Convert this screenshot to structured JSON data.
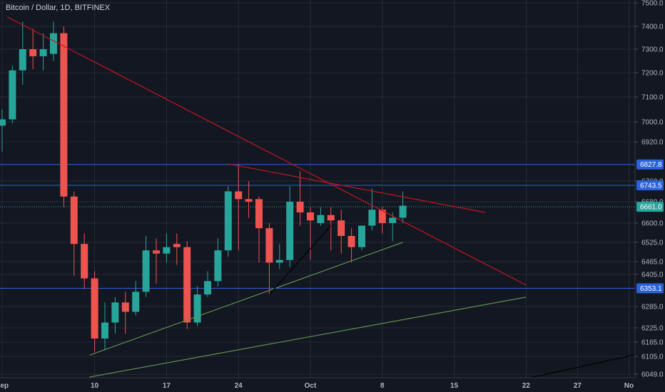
{
  "header": {
    "title": "Bitcoin / Dollar, 1D, BITFINEX"
  },
  "colors": {
    "background": "#131722",
    "grid": "#252a36",
    "up": "#26a69a",
    "down": "#ef5350",
    "axis_text": "#b2b5be",
    "resistance": "#c2151e",
    "support": "#5f8f4e",
    "trend_black": "#000000",
    "hline": "#2a62d9",
    "price_line": "#26a69a"
  },
  "chart_data": {
    "type": "candlestick",
    "title": "Bitcoin / Dollar, 1D, BITFINEX",
    "yticks": [
      6049,
      6105,
      6165,
      6225,
      6285,
      6405,
      6465,
      6525,
      6600,
      6680,
      6760,
      6920,
      7000,
      7100,
      7200,
      7300,
      7400,
      7500
    ],
    "xticks": [
      {
        "label": "Sep",
        "day": 0
      },
      {
        "label": "10",
        "day": 9
      },
      {
        "label": "17",
        "day": 16
      },
      {
        "label": "24",
        "day": 23
      },
      {
        "label": "Oct",
        "day": 30
      },
      {
        "label": "8",
        "day": 37
      },
      {
        "label": "15",
        "day": 44
      },
      {
        "label": "22",
        "day": 51
      },
      {
        "label": "27",
        "day": 56
      },
      {
        "label": "No",
        "day": 61
      }
    ],
    "candles": [
      {
        "o": 6985,
        "h": 7050,
        "l": 6880,
        "c": 7010
      },
      {
        "o": 7010,
        "h": 7230,
        "l": 6995,
        "c": 7210
      },
      {
        "o": 7210,
        "h": 7420,
        "l": 7150,
        "c": 7300
      },
      {
        "o": 7300,
        "h": 7390,
        "l": 7215,
        "c": 7270
      },
      {
        "o": 7270,
        "h": 7370,
        "l": 7210,
        "c": 7300
      },
      {
        "o": 7280,
        "h": 7420,
        "l": 7250,
        "c": 7370
      },
      {
        "o": 7370,
        "h": 7400,
        "l": 6660,
        "c": 6700
      },
      {
        "o": 6700,
        "h": 6720,
        "l": 6400,
        "c": 6520
      },
      {
        "o": 6520,
        "h": 6560,
        "l": 6350,
        "c": 6390
      },
      {
        "o": 6390,
        "h": 6420,
        "l": 6125,
        "c": 6180
      },
      {
        "o": 6180,
        "h": 6300,
        "l": 6130,
        "c": 6240
      },
      {
        "o": 6240,
        "h": 6320,
        "l": 6200,
        "c": 6300
      },
      {
        "o": 6300,
        "h": 6340,
        "l": 6200,
        "c": 6270
      },
      {
        "o": 6270,
        "h": 6380,
        "l": 6260,
        "c": 6340
      },
      {
        "o": 6340,
        "h": 6550,
        "l": 6320,
        "c": 6500
      },
      {
        "o": 6500,
        "h": 6540,
        "l": 6370,
        "c": 6490
      },
      {
        "o": 6490,
        "h": 6560,
        "l": 6460,
        "c": 6510
      },
      {
        "o": 6520,
        "h": 6560,
        "l": 6450,
        "c": 6510
      },
      {
        "o": 6510,
        "h": 6530,
        "l": 6220,
        "c": 6240
      },
      {
        "o": 6240,
        "h": 6360,
        "l": 6230,
        "c": 6330
      },
      {
        "o": 6330,
        "h": 6420,
        "l": 6320,
        "c": 6380
      },
      {
        "o": 6380,
        "h": 6540,
        "l": 6360,
        "c": 6500
      },
      {
        "o": 6500,
        "h": 6740,
        "l": 6480,
        "c": 6720
      },
      {
        "o": 6720,
        "h": 6830,
        "l": 6500,
        "c": 6690
      },
      {
        "o": 6690,
        "h": 6760,
        "l": 6620,
        "c": 6680
      },
      {
        "o": 6690,
        "h": 6700,
        "l": 6460,
        "c": 6580
      },
      {
        "o": 6580,
        "h": 6600,
        "l": 6330,
        "c": 6460
      },
      {
        "o": 6460,
        "h": 6520,
        "l": 6430,
        "c": 6470
      },
      {
        "o": 6470,
        "h": 6740,
        "l": 6440,
        "c": 6680
      },
      {
        "o": 6680,
        "h": 6800,
        "l": 6590,
        "c": 6640
      },
      {
        "o": 6640,
        "h": 6660,
        "l": 6470,
        "c": 6610
      },
      {
        "o": 6600,
        "h": 6660,
        "l": 6590,
        "c": 6630
      },
      {
        "o": 6630,
        "h": 6660,
        "l": 6500,
        "c": 6610
      },
      {
        "o": 6610,
        "h": 6650,
        "l": 6490,
        "c": 6550
      },
      {
        "o": 6550,
        "h": 6580,
        "l": 6460,
        "c": 6510
      },
      {
        "o": 6510,
        "h": 6590,
        "l": 6500,
        "c": 6590
      },
      {
        "o": 6590,
        "h": 6730,
        "l": 6570,
        "c": 6650
      },
      {
        "o": 6650,
        "h": 6660,
        "l": 6560,
        "c": 6600
      },
      {
        "o": 6600,
        "h": 6640,
        "l": 6530,
        "c": 6620
      },
      {
        "o": 6620,
        "h": 6720,
        "l": 6600,
        "c": 6665
      }
    ],
    "horizontal_levels": [
      6827.8,
      6743.5,
      6353.1
    ],
    "current_price": 6661.0,
    "price_tags": [
      {
        "label": "6827.8",
        "value": 6827.8,
        "color": "#2a62d9"
      },
      {
        "label": "6743.5",
        "value": 6743.5,
        "color": "#2a62d9"
      },
      {
        "label": "6661.0",
        "value": 6661.0,
        "color": "#26a69a"
      },
      {
        "label": "6353.1",
        "value": 6353.1,
        "color": "#2a62d9"
      }
    ],
    "trendlines": [
      {
        "color": "#c2151e",
        "from": {
          "day": 0.5,
          "price": 7440
        },
        "to": {
          "day": 51,
          "price": 6365
        }
      },
      {
        "color": "#c2151e",
        "from": {
          "day": 22,
          "price": 6830
        },
        "to": {
          "day": 47,
          "price": 6640
        }
      },
      {
        "color": "#5f8f4e",
        "from": {
          "day": 8.5,
          "price": 6110
        },
        "to": {
          "day": 39,
          "price": 6525
        }
      },
      {
        "color": "#5f8f4e",
        "from": {
          "day": 8.5,
          "price": 6040
        },
        "to": {
          "day": 51,
          "price": 6320
        }
      },
      {
        "color": "#000000",
        "from": {
          "day": 26,
          "price": 6330
        },
        "to": {
          "day": 32,
          "price": 6590
        }
      },
      {
        "color": "#000000",
        "from": {
          "day": 51,
          "price": 6035
        },
        "to": {
          "day": 63,
          "price": 6125
        }
      }
    ]
  }
}
